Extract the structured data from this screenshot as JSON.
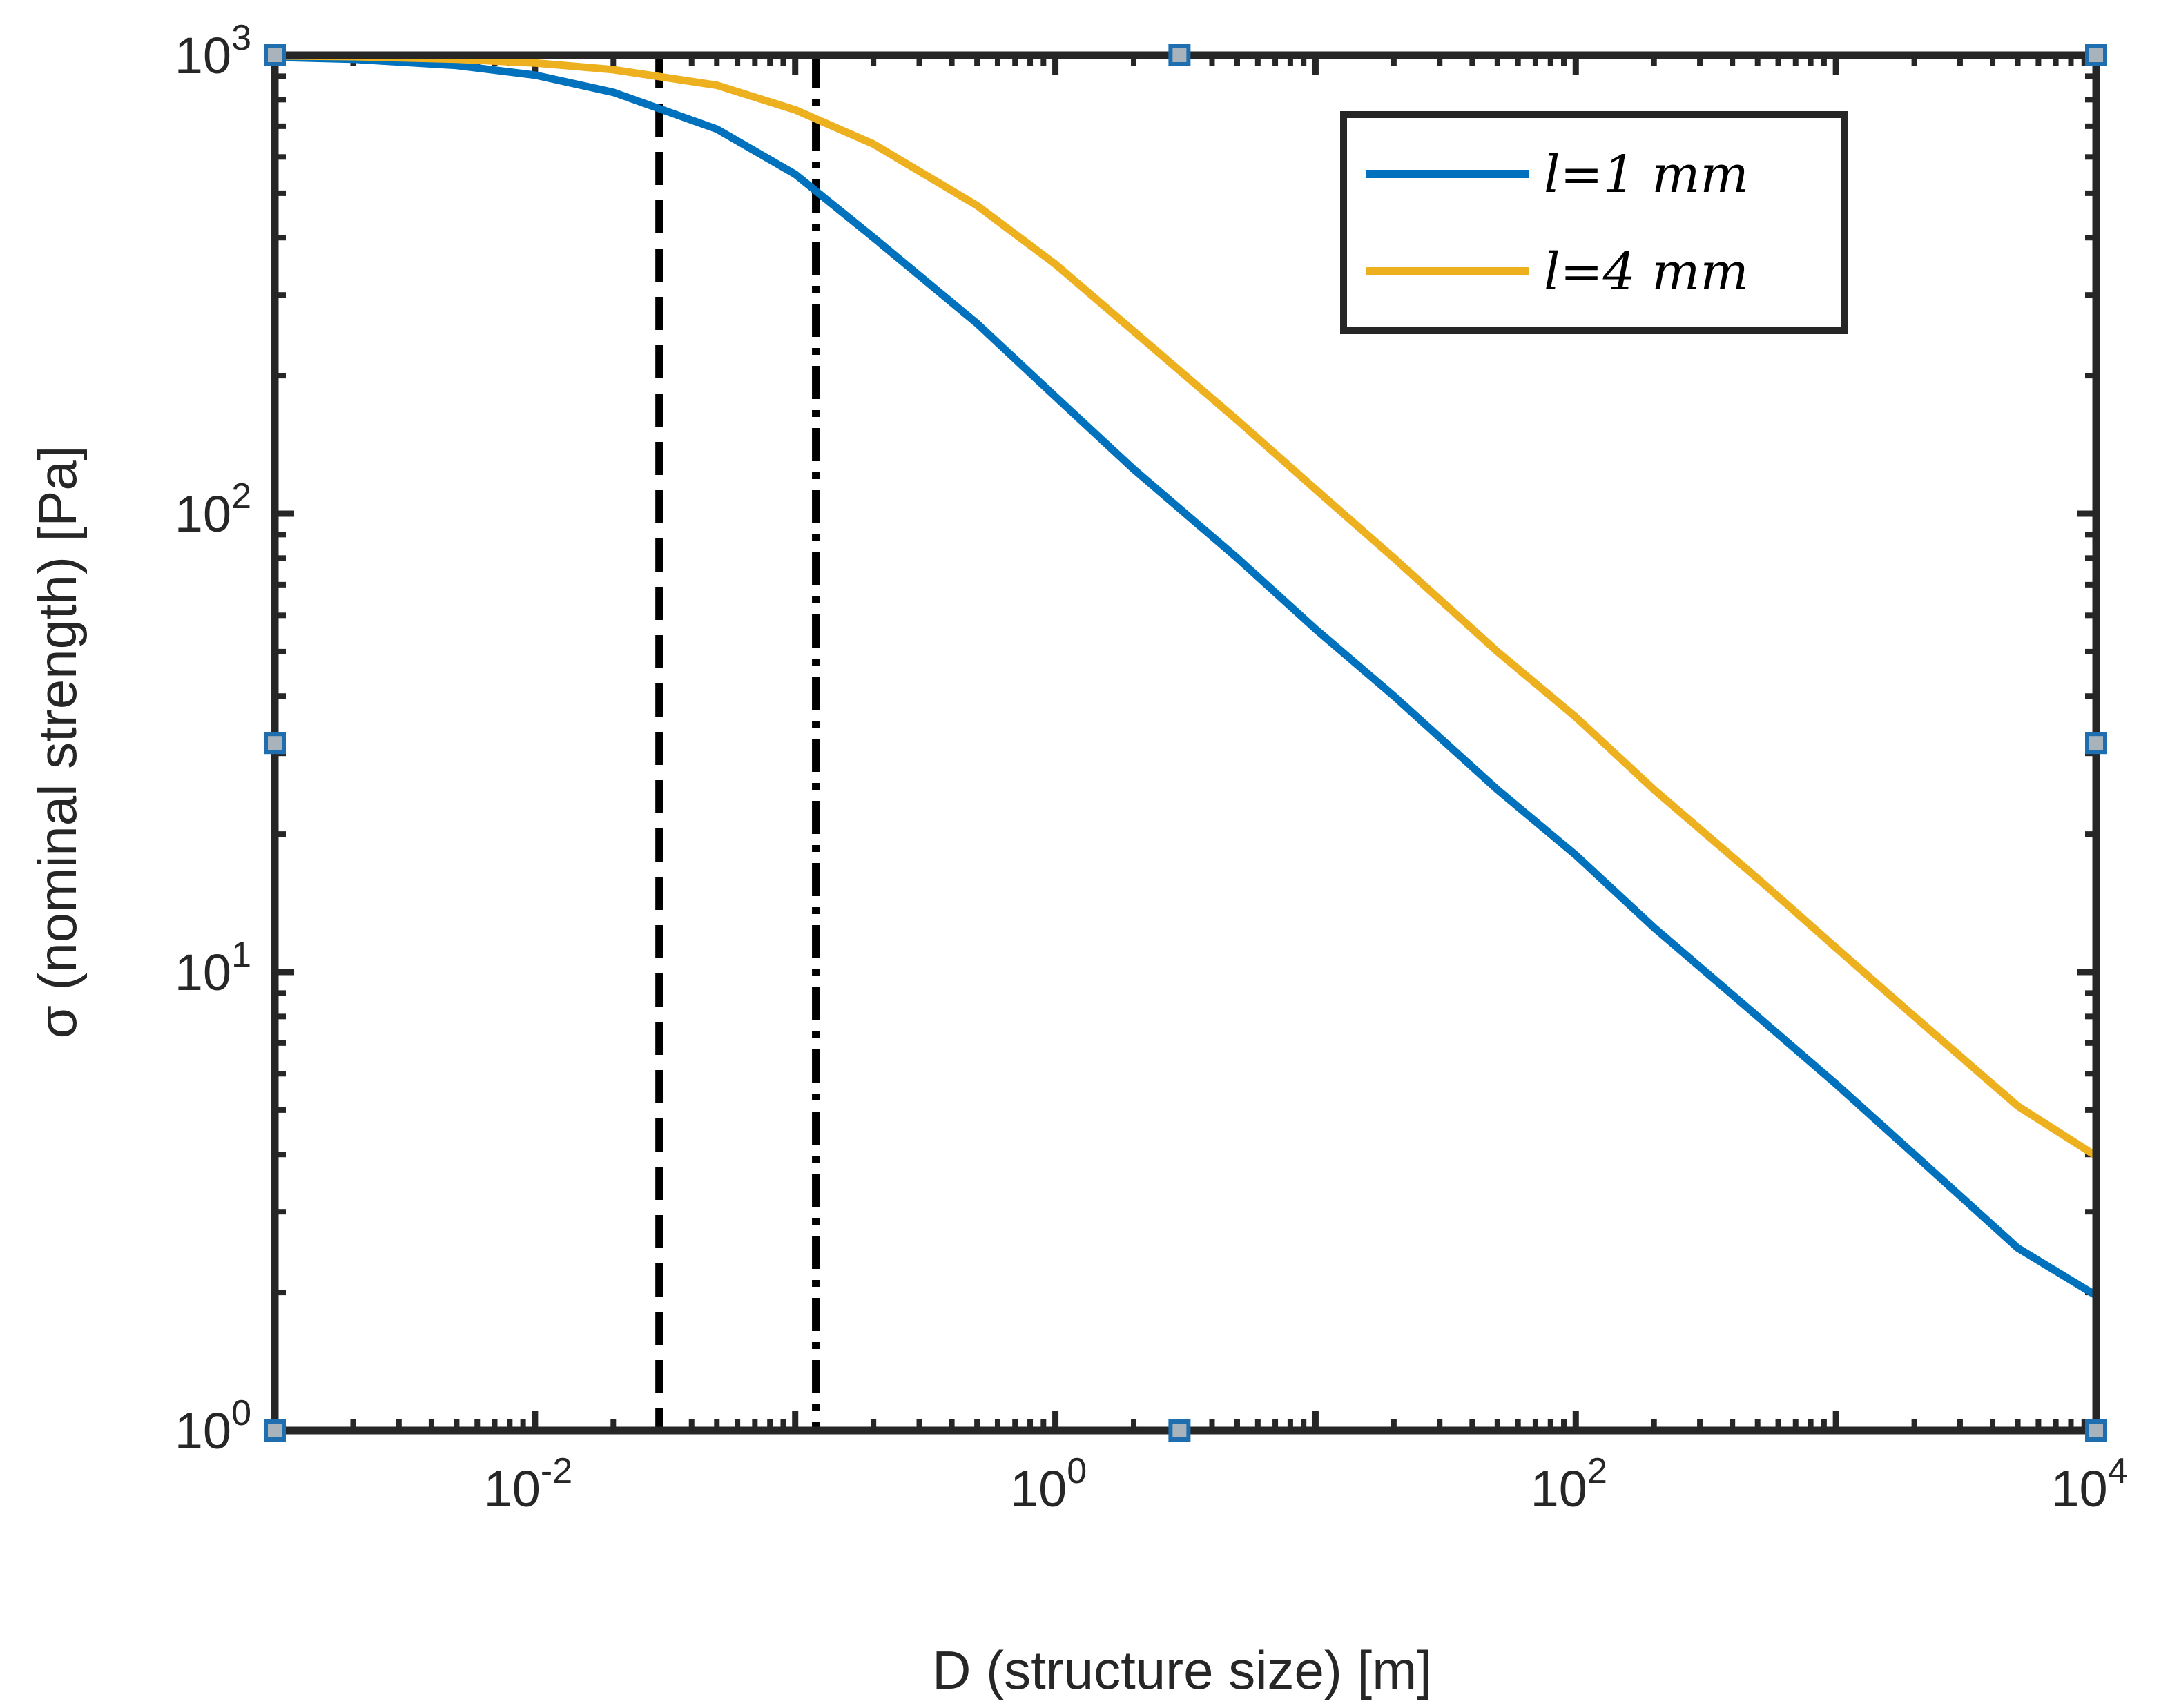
{
  "chart_data": {
    "type": "line",
    "xscale": "log",
    "yscale": "log",
    "xlabel": "D (structure size) [m]",
    "ylabel": "σ (nominal strength) [Pa]",
    "xlim": [
      0.001,
      10000
    ],
    "ylim": [
      1,
      1000
    ],
    "x_ticks": [
      {
        "value": 0.01,
        "base": "10",
        "exp": "-2"
      },
      {
        "value": 1,
        "base": "10",
        "exp": "0"
      },
      {
        "value": 100,
        "base": "10",
        "exp": "2"
      },
      {
        "value": 10000,
        "base": "10",
        "exp": "4"
      }
    ],
    "y_ticks": [
      {
        "value": 1,
        "base": "10",
        "exp": "0"
      },
      {
        "value": 10,
        "base": "10",
        "exp": "1"
      },
      {
        "value": 100,
        "base": "10",
        "exp": "2"
      },
      {
        "value": 1000,
        "base": "10",
        "exp": "3"
      }
    ],
    "series": [
      {
        "name": "l=1 mm",
        "color": "#0072BD",
        "x": [
          0.001,
          0.002,
          0.005,
          0.01,
          0.02,
          0.05,
          0.1,
          0.2,
          0.5,
          1,
          2,
          5,
          10,
          20,
          50,
          100,
          200,
          500,
          1000,
          2000,
          5000,
          10000
        ],
        "y": [
          990,
          980,
          950,
          905,
          830,
          690,
          550,
          400,
          260,
          180,
          125,
          80,
          56,
          40,
          25,
          18,
          12.5,
          8,
          5.7,
          4,
          2.5,
          1.97
        ]
      },
      {
        "name": "l=4 mm",
        "color": "#EDB120",
        "x": [
          0.001,
          0.002,
          0.005,
          0.01,
          0.02,
          0.05,
          0.1,
          0.2,
          0.5,
          1,
          2,
          5,
          10,
          20,
          50,
          100,
          200,
          500,
          1000,
          2000,
          5000,
          10000
        ],
        "y": [
          997,
          993,
          980,
          962,
          930,
          860,
          760,
          640,
          470,
          350,
          250,
          160,
          113,
          80,
          50,
          36,
          25,
          16,
          11.3,
          8,
          5.1,
          3.97
        ]
      }
    ],
    "vlines": [
      {
        "x": 0.03,
        "style": "dashed",
        "color": "#000000"
      },
      {
        "x": 0.12,
        "style": "dashdot",
        "color": "#000000"
      }
    ],
    "markers": [
      {
        "x": 0.001,
        "y": 1000
      },
      {
        "x": 3,
        "y": 1000
      },
      {
        "x": 10000,
        "y": 1000
      },
      {
        "x": 0.001,
        "y": 31.6
      },
      {
        "x": 10000,
        "y": 31.6
      },
      {
        "x": 0.001,
        "y": 1
      },
      {
        "x": 3,
        "y": 1
      },
      {
        "x": 10000,
        "y": 1
      }
    ],
    "legend": {
      "location": "top-right"
    },
    "grid": false
  },
  "colors": {
    "axes": "#262626",
    "marker_edge": "#1F6FB0",
    "marker_fill": "#A9B3BC"
  }
}
